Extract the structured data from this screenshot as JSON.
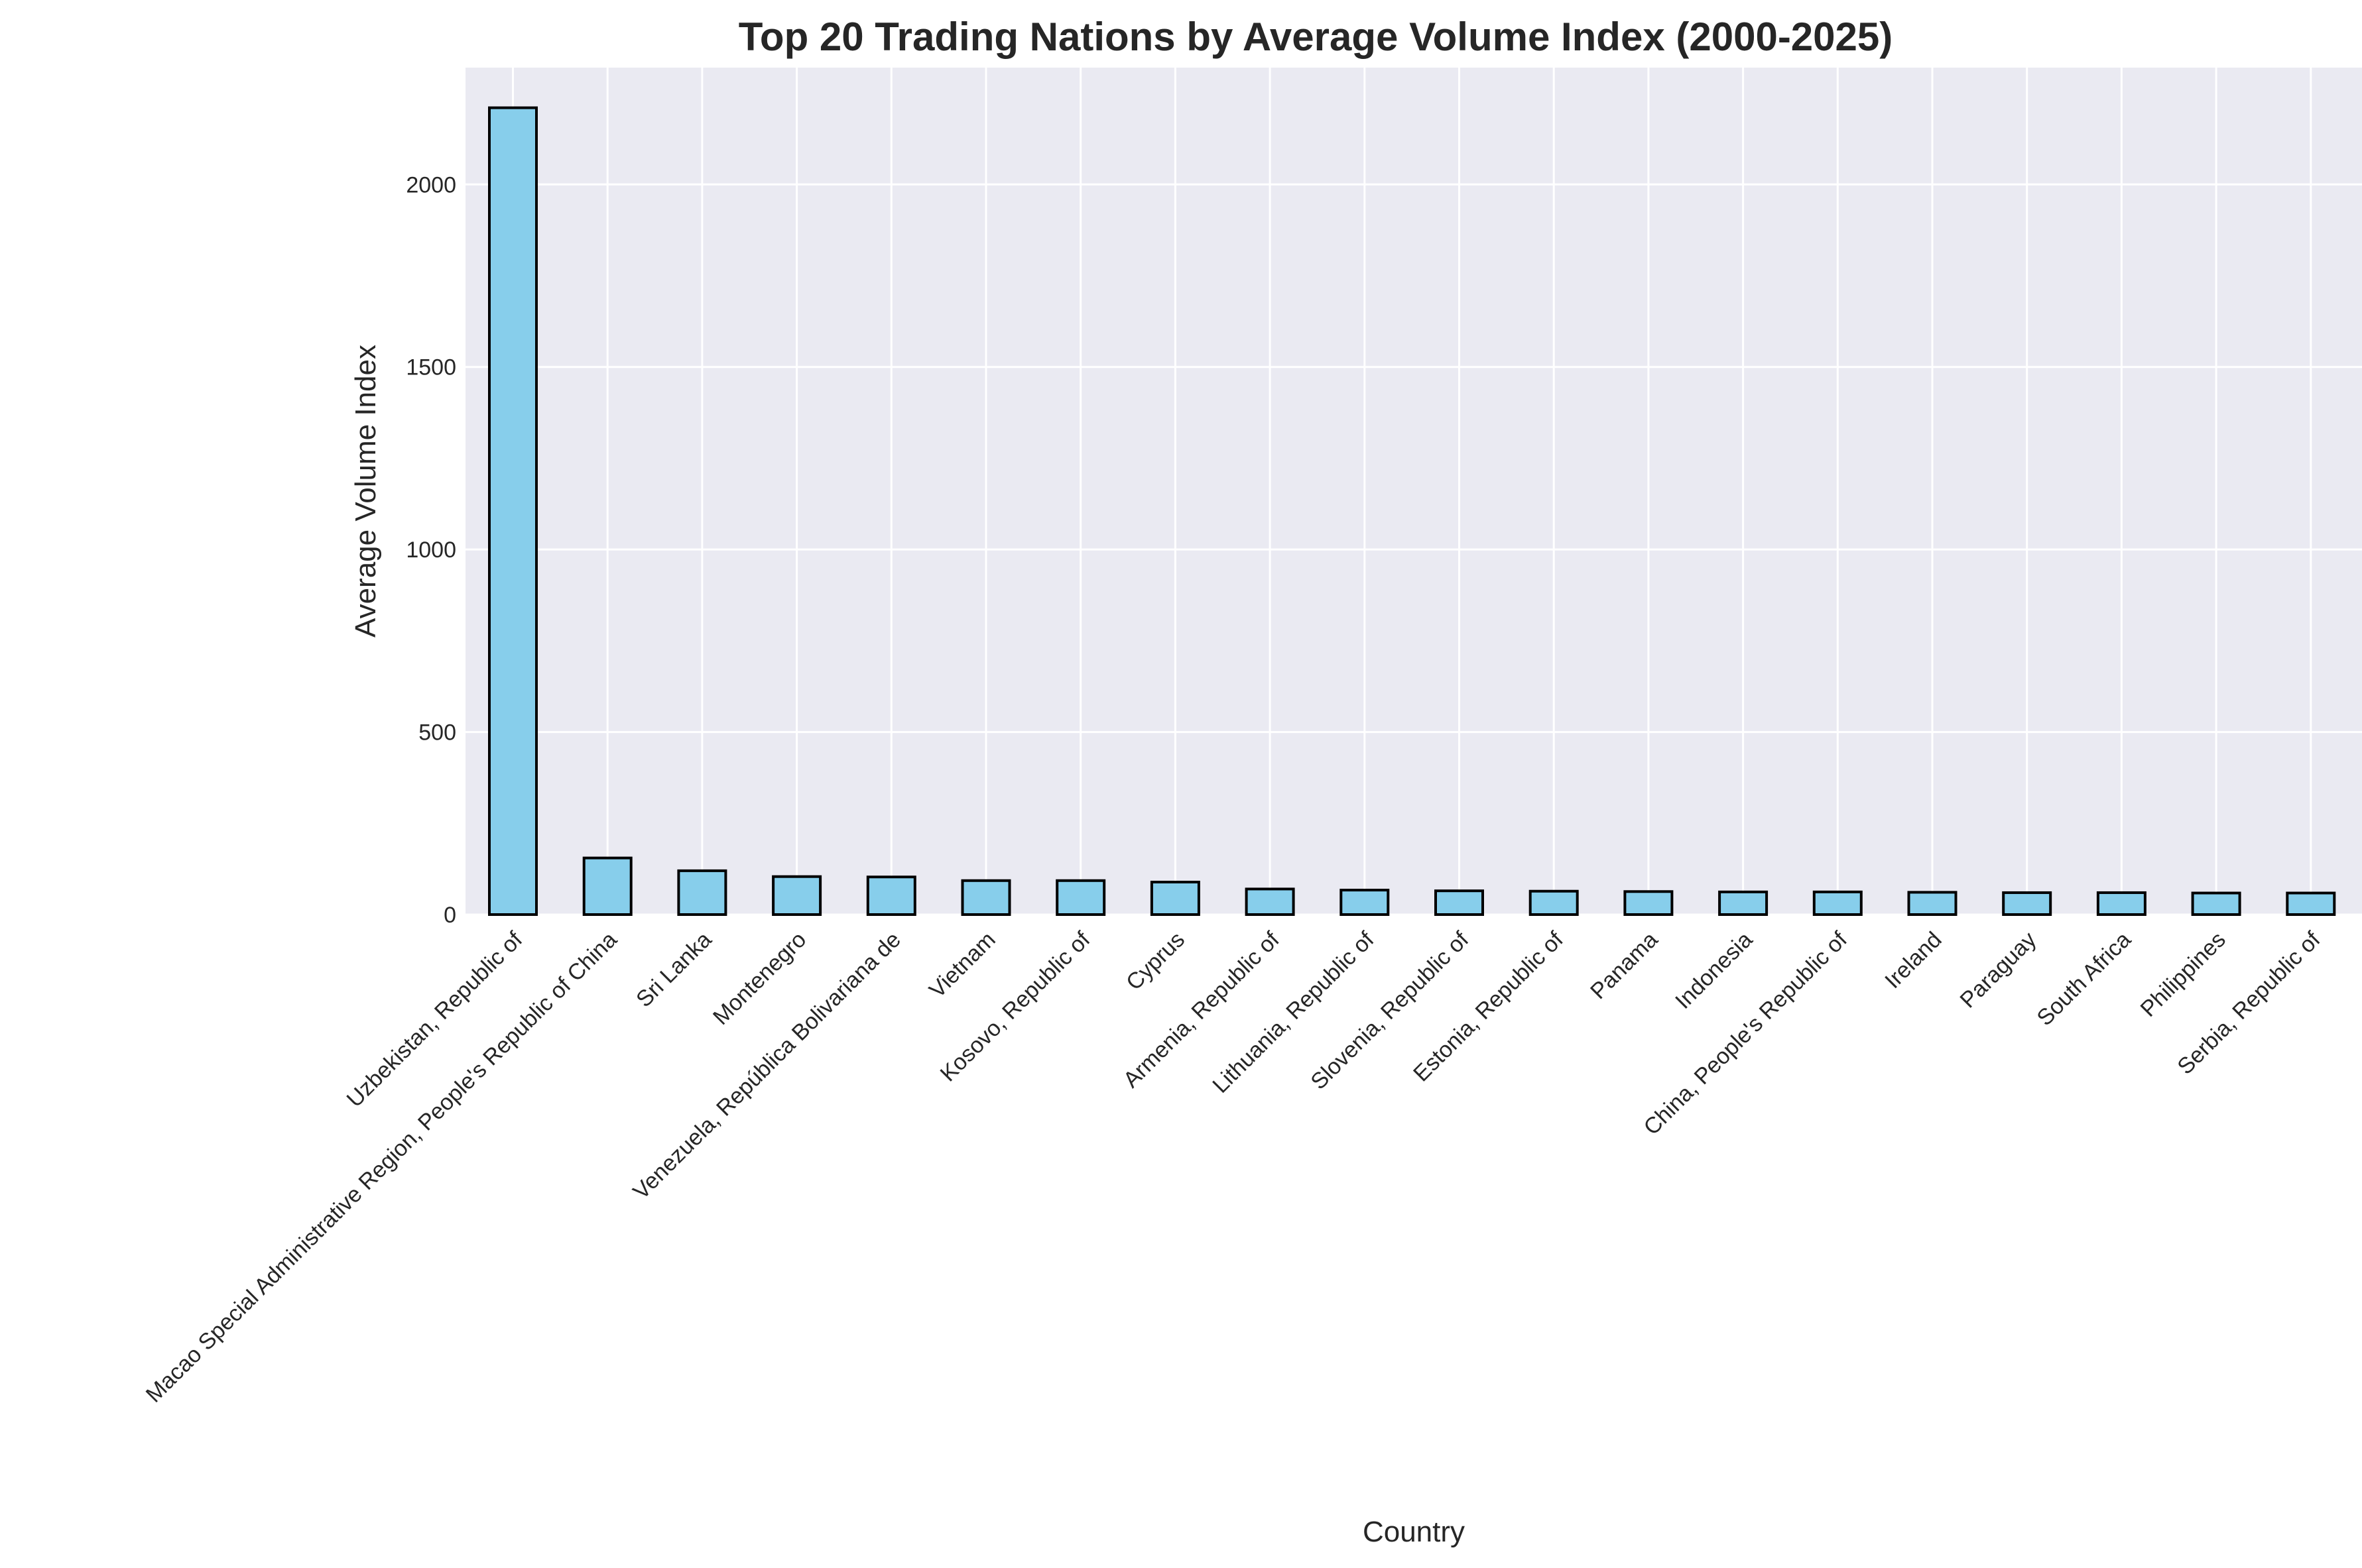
{
  "chart_data": {
    "type": "bar",
    "title": "Top 20 Trading Nations by Average Volume Index (2000-2025)",
    "xlabel": "Country",
    "ylabel": "Average Volume Index",
    "ylim": [
      0,
      2320
    ],
    "yticks": [
      0,
      500,
      1000,
      1500,
      2000
    ],
    "grid": true,
    "legend": "none",
    "categories": [
      "Uzbekistan, Republic of",
      "Macao Special Administrative Region, People's Republic of China",
      "Sri Lanka",
      "Montenegro",
      "Venezuela, República Bolivariana de",
      "Vietnam",
      "Kosovo, Republic of",
      "Cyprus",
      "Armenia, Republic of",
      "Lithuania, Republic of",
      "Slovenia, Republic of",
      "Estonia, Republic of",
      "Panama",
      "Indonesia",
      "China, People's Republic of",
      "Ireland",
      "Paraguay",
      "South Africa",
      "Philippines",
      "Serbia, Republic of"
    ],
    "values": [
      2210,
      155,
      120,
      104,
      103,
      93,
      93,
      89,
      70,
      67,
      65,
      64,
      63,
      62,
      62,
      61,
      60,
      60,
      59,
      59
    ],
    "colors": {
      "bar_fill": "#87CEEB",
      "bar_edge": "#000000",
      "plot_bg": "#EAEAF2",
      "grid": "#FFFFFF"
    }
  }
}
